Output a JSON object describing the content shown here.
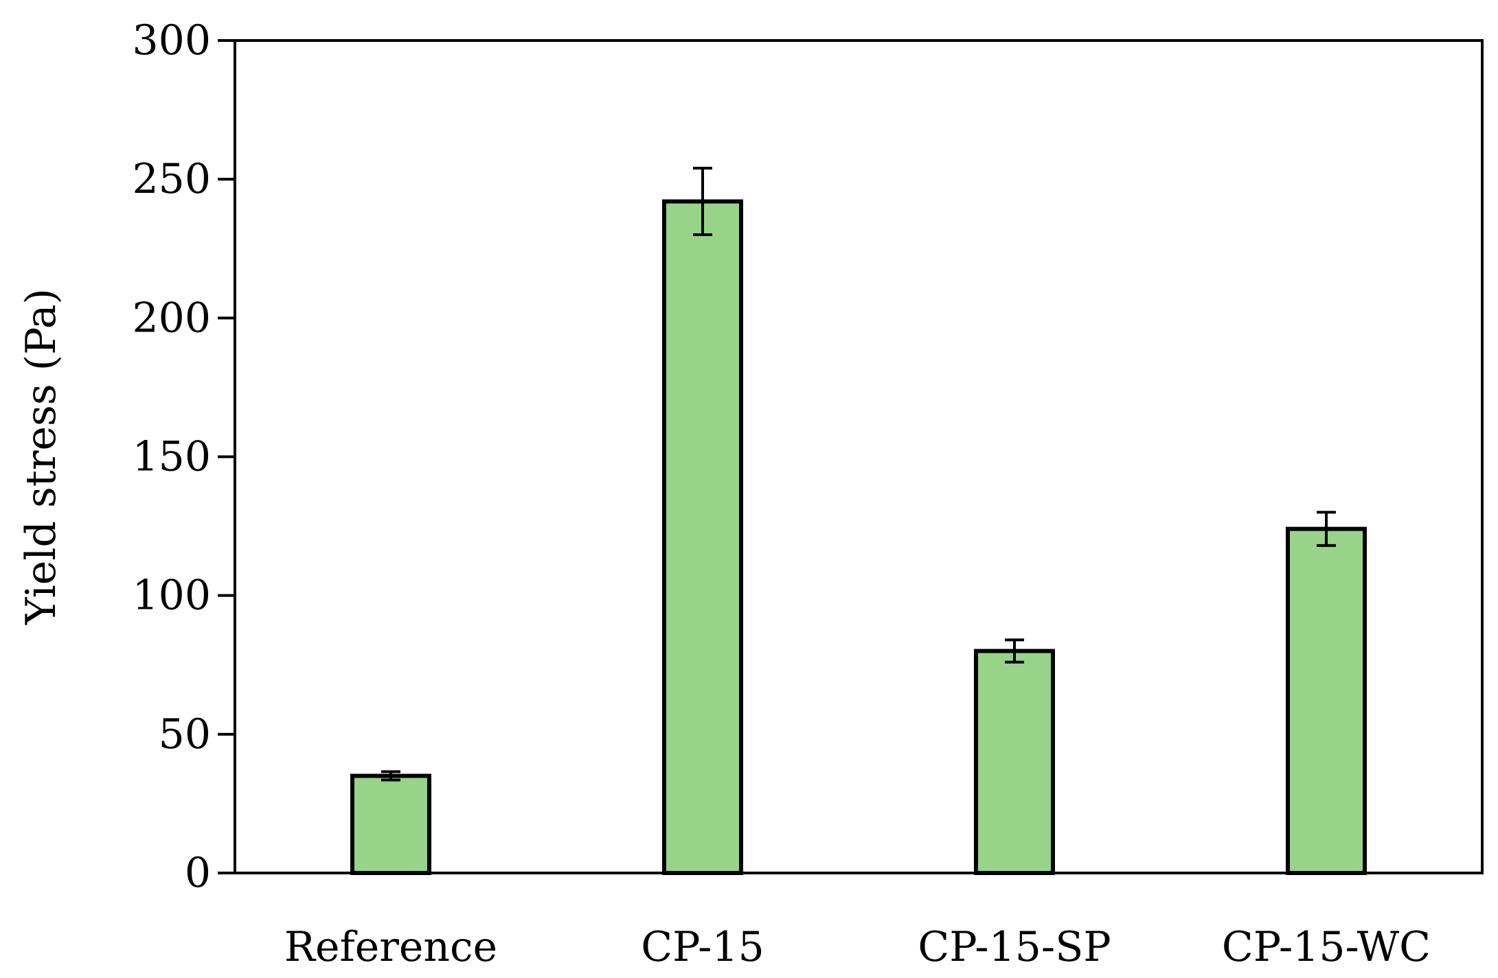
{
  "chart_data": {
    "type": "bar",
    "categories": [
      "Reference",
      "CP-15",
      "CP-15-SP",
      "CP-15-WC"
    ],
    "values": [
      35,
      242,
      80,
      124
    ],
    "error": [
      1.5,
      12,
      4,
      6
    ],
    "xlabel": "",
    "ylabel": "Yield stress (Pa)",
    "ylim": [
      0,
      300
    ],
    "yticks": [
      0,
      50,
      100,
      150,
      200,
      250,
      300
    ],
    "grid": false,
    "legend": "none",
    "colors": {
      "bar_fill": "#98D38A",
      "bar_stroke": "#000000",
      "axis": "#000000"
    }
  }
}
